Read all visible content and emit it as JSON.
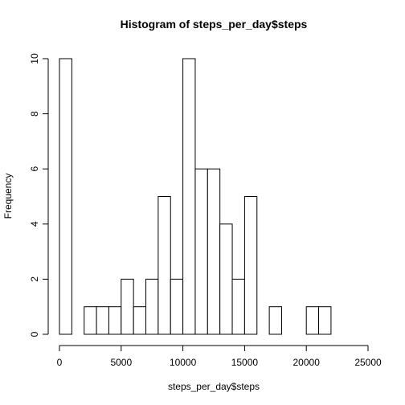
{
  "chart_data": {
    "type": "bar",
    "title": "Histogram of steps_per_day$steps",
    "xlabel": "steps_per_day$steps",
    "ylabel": "Frequency",
    "xlim": [
      0,
      25000
    ],
    "ylim": [
      0,
      10
    ],
    "bin_width": 1000,
    "bins": [
      {
        "start": 0,
        "end": 1000,
        "count": 10
      },
      {
        "start": 1000,
        "end": 2000,
        "count": 0
      },
      {
        "start": 2000,
        "end": 3000,
        "count": 1
      },
      {
        "start": 3000,
        "end": 4000,
        "count": 1
      },
      {
        "start": 4000,
        "end": 5000,
        "count": 1
      },
      {
        "start": 5000,
        "end": 6000,
        "count": 2
      },
      {
        "start": 6000,
        "end": 7000,
        "count": 1
      },
      {
        "start": 7000,
        "end": 8000,
        "count": 2
      },
      {
        "start": 8000,
        "end": 9000,
        "count": 5
      },
      {
        "start": 9000,
        "end": 10000,
        "count": 2
      },
      {
        "start": 10000,
        "end": 11000,
        "count": 10
      },
      {
        "start": 11000,
        "end": 12000,
        "count": 6
      },
      {
        "start": 12000,
        "end": 13000,
        "count": 6
      },
      {
        "start": 13000,
        "end": 14000,
        "count": 4
      },
      {
        "start": 14000,
        "end": 15000,
        "count": 2
      },
      {
        "start": 15000,
        "end": 16000,
        "count": 5
      },
      {
        "start": 16000,
        "end": 17000,
        "count": 0
      },
      {
        "start": 17000,
        "end": 18000,
        "count": 1
      },
      {
        "start": 18000,
        "end": 19000,
        "count": 0
      },
      {
        "start": 19000,
        "end": 20000,
        "count": 0
      },
      {
        "start": 20000,
        "end": 21000,
        "count": 1
      },
      {
        "start": 21000,
        "end": 22000,
        "count": 1
      },
      {
        "start": 22000,
        "end": 23000,
        "count": 0
      },
      {
        "start": 23000,
        "end": 24000,
        "count": 0
      },
      {
        "start": 24000,
        "end": 25000,
        "count": 0
      }
    ],
    "x_ticks": [
      0,
      5000,
      10000,
      15000,
      20000,
      25000
    ],
    "x_tick_labels": [
      "0",
      "5000",
      "10000",
      "15000",
      "20000",
      "25000"
    ],
    "y_ticks": [
      0,
      2,
      4,
      6,
      8,
      10
    ],
    "y_tick_labels": [
      "0",
      "2",
      "4",
      "6",
      "8",
      "10"
    ],
    "grid": false,
    "legend": "none",
    "colors": {
      "bar_fill": "#ffffff",
      "bar_stroke": "#000000"
    }
  }
}
